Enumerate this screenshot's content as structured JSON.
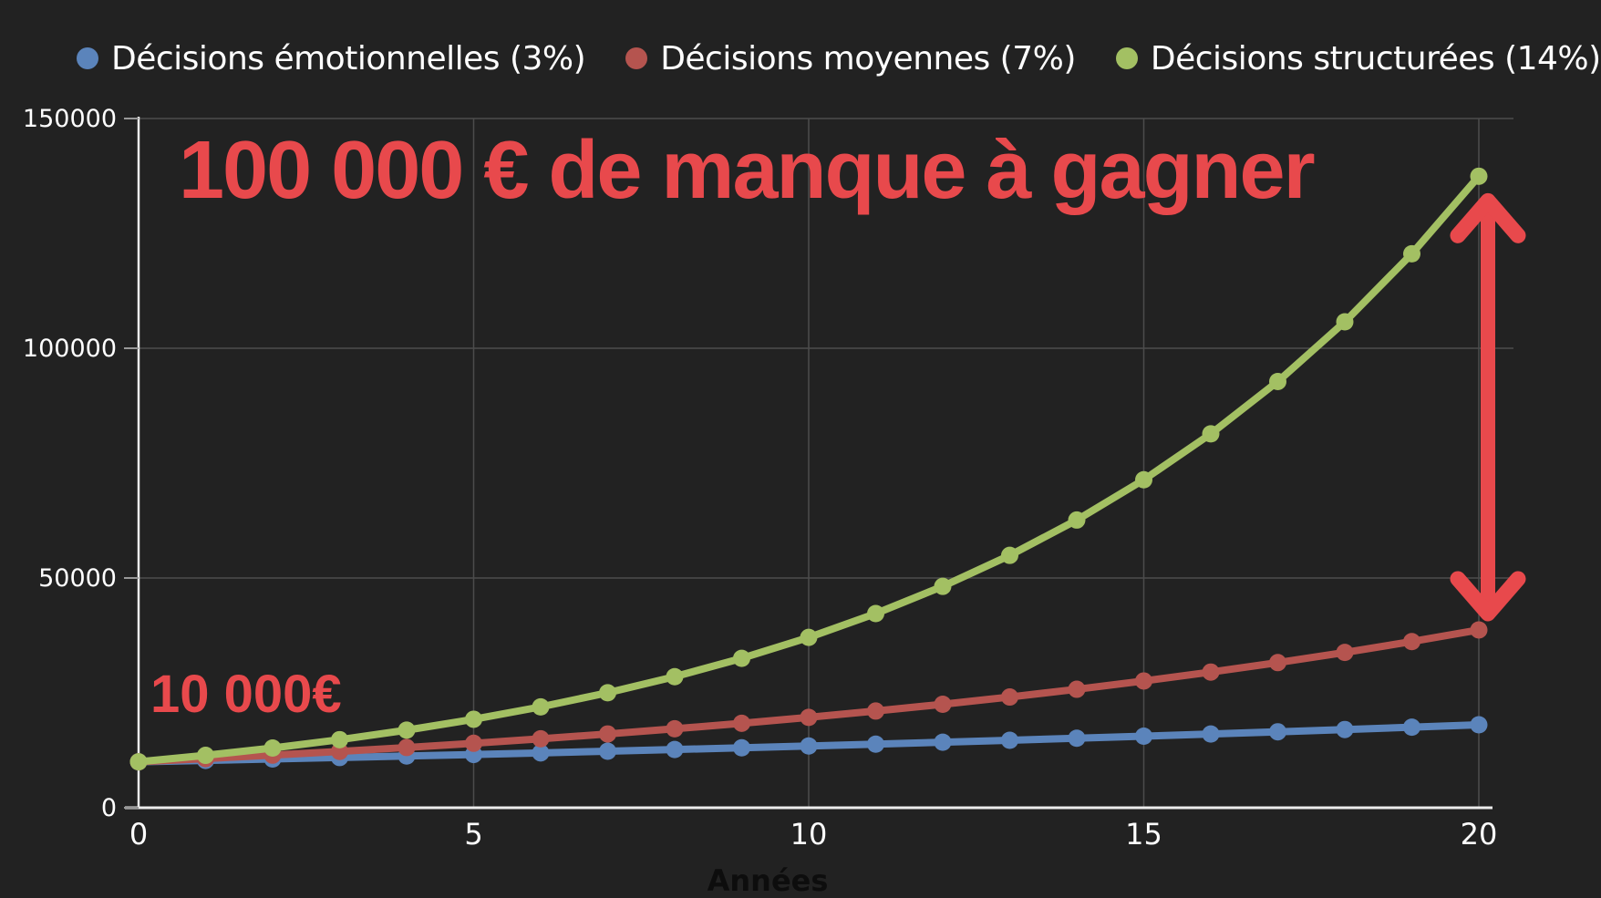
{
  "page": {
    "background": "#222222"
  },
  "legend": {
    "items": [
      {
        "label": "Décisions émotionnelles (3%)",
        "color": "#5b84bb"
      },
      {
        "label": "Décisions moyennes (7%)",
        "color": "#b5544f"
      },
      {
        "label": "Décisions structurées (14%)",
        "color": "#a3c063"
      }
    ]
  },
  "annotations": {
    "headline": "100 000 € de manque à gagner",
    "start_label": "10 000€",
    "accent_color": "#e8494c",
    "gap_arrow": {
      "year": 20,
      "from_series": "Décisions structurées (14%)",
      "to_series": "Décisions moyennes (7%)"
    }
  },
  "chart_data": {
    "type": "line",
    "title": "",
    "xlabel": "Années",
    "ylabel": "",
    "x": [
      0,
      1,
      2,
      3,
      4,
      5,
      6,
      7,
      8,
      9,
      10,
      11,
      12,
      13,
      14,
      15,
      16,
      17,
      18,
      19,
      20
    ],
    "xticks": [
      0,
      5,
      10,
      15,
      20
    ],
    "yticks": [
      0,
      50000,
      100000,
      150000
    ],
    "xlim": [
      0,
      20
    ],
    "ylim": [
      0,
      150000
    ],
    "grid": true,
    "legend_position": "top",
    "marker": "circle",
    "series": [
      {
        "name": "Décisions émotionnelles (3%)",
        "color": "#5b84bb",
        "values": [
          10000,
          10300,
          10609,
          10927,
          11255,
          11593,
          11941,
          12299,
          12668,
          13048,
          13439,
          13842,
          14258,
          14685,
          15126,
          15580,
          16047,
          16528,
          17024,
          17535,
          18061
        ]
      },
      {
        "name": "Décisions moyennes (7%)",
        "color": "#b5544f",
        "values": [
          10000,
          10700,
          11449,
          12250,
          13108,
          14026,
          15007,
          16058,
          17182,
          18385,
          19672,
          21049,
          22522,
          24098,
          25785,
          27590,
          29522,
          31588,
          33799,
          36165,
          38697
        ]
      },
      {
        "name": "Décisions structurées (14%)",
        "color": "#a3c063",
        "values": [
          10000,
          11400,
          12996,
          14815,
          16890,
          19254,
          21950,
          25023,
          28526,
          32519,
          37072,
          42262,
          48179,
          54924,
          62614,
          71379,
          81373,
          92765,
          105752,
          120557,
          137435
        ]
      }
    ]
  }
}
